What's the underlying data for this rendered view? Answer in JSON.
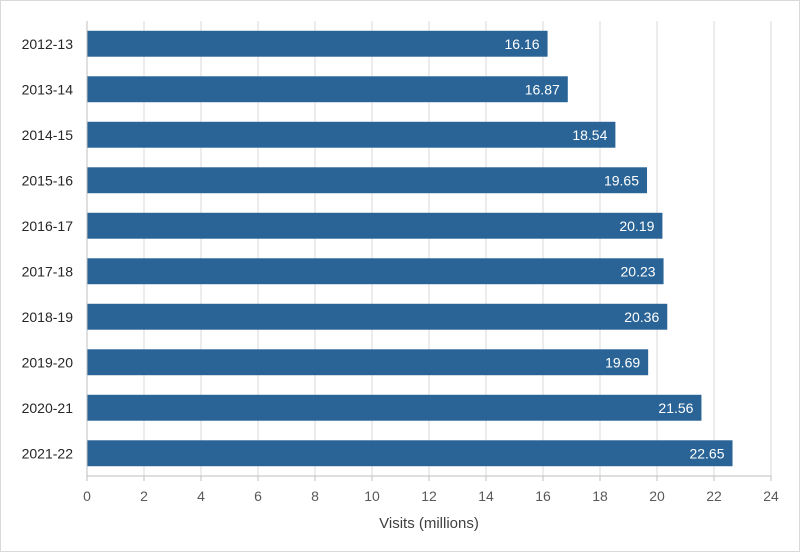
{
  "chart_data": {
    "type": "bar",
    "orientation": "horizontal",
    "categories": [
      "2012-13",
      "2013-14",
      "2014-15",
      "2015-16",
      "2016-17",
      "2017-18",
      "2018-19",
      "2019-20",
      "2020-21",
      "2021-22"
    ],
    "values": [
      16.16,
      16.87,
      18.54,
      19.65,
      20.19,
      20.23,
      20.36,
      19.69,
      21.56,
      22.65
    ],
    "data_labels": [
      "16.16",
      "16.87",
      "18.54",
      "19.65",
      "20.19",
      "20.23",
      "20.36",
      "19.69",
      "21.56",
      "22.65"
    ],
    "xlabel": "Visits (millions)",
    "ylabel": "",
    "xlim": [
      0,
      24
    ],
    "x_ticks": [
      0,
      2,
      4,
      6,
      8,
      10,
      12,
      14,
      16,
      18,
      20,
      22,
      24
    ],
    "x_tick_labels": [
      "0",
      "2",
      "4",
      "6",
      "8",
      "10",
      "12",
      "14",
      "16",
      "18",
      "20",
      "22",
      "24"
    ],
    "grid": "vertical",
    "legend": "none",
    "colors": {
      "bar": "#2a6496",
      "grid": "#d9d9d9",
      "axis": "#bfbfbf"
    }
  }
}
